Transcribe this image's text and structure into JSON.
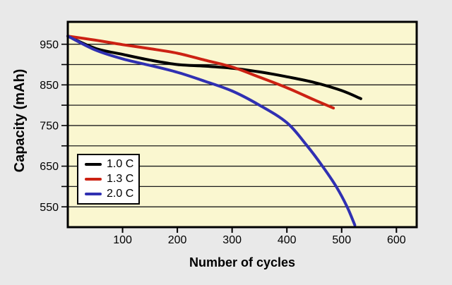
{
  "figure": {
    "background_color": "#e9e9e9",
    "plot_background_color": "#faf7d0",
    "grid_color": "#1c1c1c",
    "border_color": "#000000",
    "tick_color": "#000000"
  },
  "chart_data": {
    "type": "line",
    "title": "",
    "xlabel": "Number of cycles",
    "ylabel": "Capacity (mAh)",
    "xlim": [
      0,
      637
    ],
    "ylim": [
      500,
      1005
    ],
    "grid": "horizontal-only",
    "x_ticks": [
      100,
      200,
      300,
      400,
      500,
      600
    ],
    "y_major_ticks": [
      550,
      650,
      750,
      850,
      950
    ],
    "y_minor_ticks": [
      600,
      700,
      800,
      900
    ],
    "legend_position": "inside-lower-left",
    "series": [
      {
        "name": "1.0 C",
        "color": "#000000",
        "points": [
          [
            0,
            970
          ],
          [
            50,
            940
          ],
          [
            100,
            925
          ],
          [
            150,
            911
          ],
          [
            200,
            900
          ],
          [
            250,
            896
          ],
          [
            300,
            891
          ],
          [
            350,
            882
          ],
          [
            400,
            870
          ],
          [
            450,
            856
          ],
          [
            500,
            836
          ],
          [
            535,
            816
          ]
        ]
      },
      {
        "name": "1.3 C",
        "color": "#cc2213",
        "points": [
          [
            0,
            970
          ],
          [
            50,
            960
          ],
          [
            100,
            949
          ],
          [
            150,
            939
          ],
          [
            200,
            928
          ],
          [
            250,
            911
          ],
          [
            300,
            894
          ],
          [
            350,
            869
          ],
          [
            400,
            843
          ],
          [
            450,
            813
          ],
          [
            485,
            793
          ]
        ]
      },
      {
        "name": "2.0 C",
        "color": "#3030b2",
        "points": [
          [
            0,
            970
          ],
          [
            50,
            936
          ],
          [
            100,
            914
          ],
          [
            150,
            898
          ],
          [
            200,
            881
          ],
          [
            250,
            859
          ],
          [
            300,
            835
          ],
          [
            350,
            800
          ],
          [
            400,
            757
          ],
          [
            437,
            700
          ],
          [
            465,
            650
          ],
          [
            490,
            600
          ],
          [
            510,
            550
          ],
          [
            524,
            505
          ]
        ]
      }
    ]
  }
}
